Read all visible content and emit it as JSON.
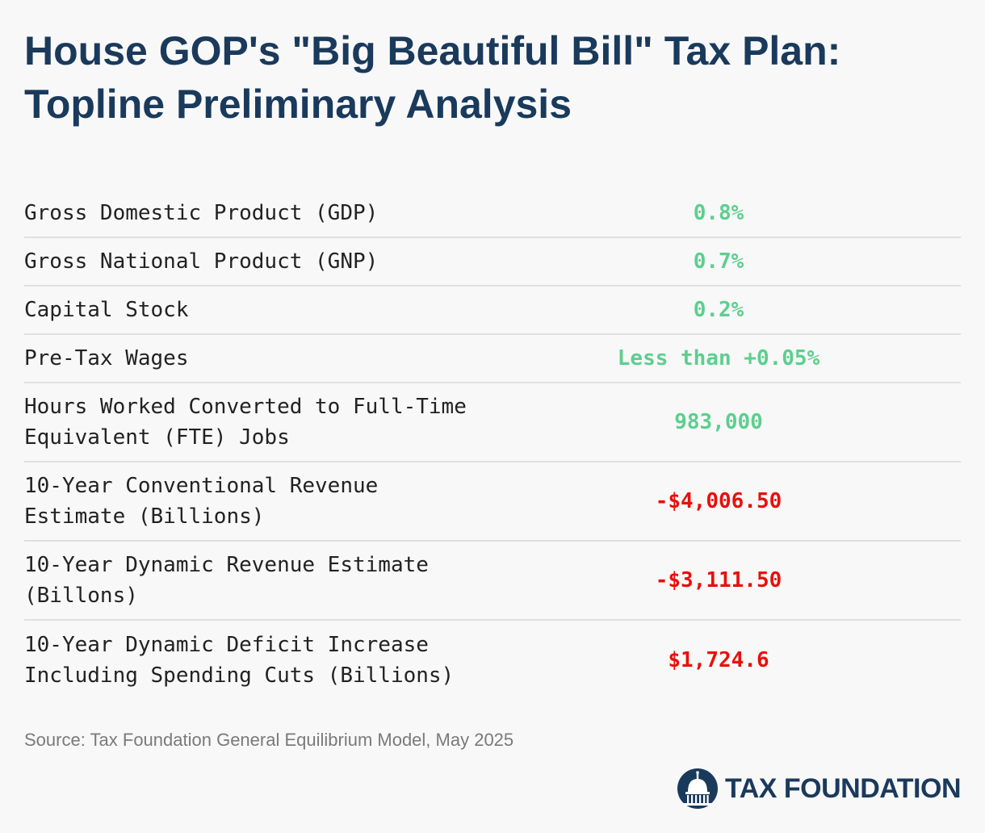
{
  "title": {
    "line1": "House GOP's \"Big Beautiful Bill\" Tax Plan:",
    "line2": "Topline Preliminary Analysis"
  },
  "chart_data": {
    "type": "table",
    "rows": [
      {
        "label": "Gross Domestic Product (GDP)",
        "value": "0.8%",
        "sign": "positive"
      },
      {
        "label": "Gross National Product (GNP)",
        "value": "0.7%",
        "sign": "positive"
      },
      {
        "label": "Capital Stock",
        "value": "0.2%",
        "sign": "positive"
      },
      {
        "label": "Pre-Tax Wages",
        "value": "Less than +0.05%",
        "sign": "positive"
      },
      {
        "label": "Hours Worked Converted to Full-Time\nEquivalent (FTE) Jobs",
        "value": "983,000",
        "sign": "positive"
      },
      {
        "label": "10-Year Conventional Revenue\nEstimate (Billions)",
        "value": "-$4,006.50",
        "sign": "negative"
      },
      {
        "label": "10-Year Dynamic Revenue Estimate\n(Billons)",
        "value": "-$3,111.50",
        "sign": "negative"
      },
      {
        "label": "10-Year Dynamic Deficit Increase\nIncluding Spending Cuts (Billions)",
        "value": "$1,724.6",
        "sign": "negative"
      }
    ]
  },
  "colors": {
    "title": "#1a3a5c",
    "positive": "#5ccf8e",
    "negative": "#e8100c",
    "background": "#f8f8f8"
  },
  "source": "Source: Tax Foundation General Equilibrium Model, May 2025",
  "logo": {
    "icon": "capitol-dome-icon",
    "text": "TAX FOUNDATION"
  }
}
